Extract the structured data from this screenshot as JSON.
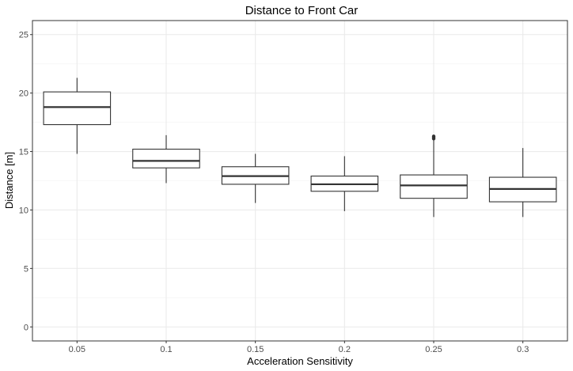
{
  "chart_data": {
    "type": "box",
    "title": "Distance to Front Car",
    "xlabel": "Acceleration Sensitivity",
    "ylabel": "Distance [m]",
    "ylim": [
      -1.2,
      26.2
    ],
    "yticks": [
      0,
      5,
      10,
      15,
      20,
      25
    ],
    "grid": true,
    "categories": [
      "0.05",
      "0.1",
      "0.15",
      "0.2",
      "0.25",
      "0.3"
    ],
    "boxes": [
      {
        "category": "0.05",
        "whisker_low": 14.8,
        "q1": 17.3,
        "median": 18.8,
        "q3": 20.1,
        "whisker_high": 21.3,
        "outliers": []
      },
      {
        "category": "0.1",
        "whisker_low": 12.3,
        "q1": 13.6,
        "median": 14.2,
        "q3": 15.2,
        "whisker_high": 16.4,
        "outliers": []
      },
      {
        "category": "0.15",
        "whisker_low": 10.6,
        "q1": 12.2,
        "median": 12.9,
        "q3": 13.7,
        "whisker_high": 14.8,
        "outliers": []
      },
      {
        "category": "0.2",
        "whisker_low": 9.9,
        "q1": 11.6,
        "median": 12.2,
        "q3": 12.9,
        "whisker_high": 14.6,
        "outliers": []
      },
      {
        "category": "0.25",
        "whisker_low": 9.4,
        "q1": 11.0,
        "median": 12.1,
        "q3": 13.0,
        "whisker_high": 16.0,
        "outliers": [
          16.1,
          16.2,
          16.3
        ]
      },
      {
        "category": "0.3",
        "whisker_low": 9.4,
        "q1": 10.7,
        "median": 11.8,
        "q3": 12.8,
        "whisker_high": 15.3,
        "outliers": []
      }
    ],
    "colors": {
      "box_fill": "#ffffff",
      "box_stroke": "#333333",
      "median": "#333333",
      "grid_major": "#ebebeb",
      "grid_minor": "#f5f5f5",
      "panel_border": "#333333"
    }
  }
}
